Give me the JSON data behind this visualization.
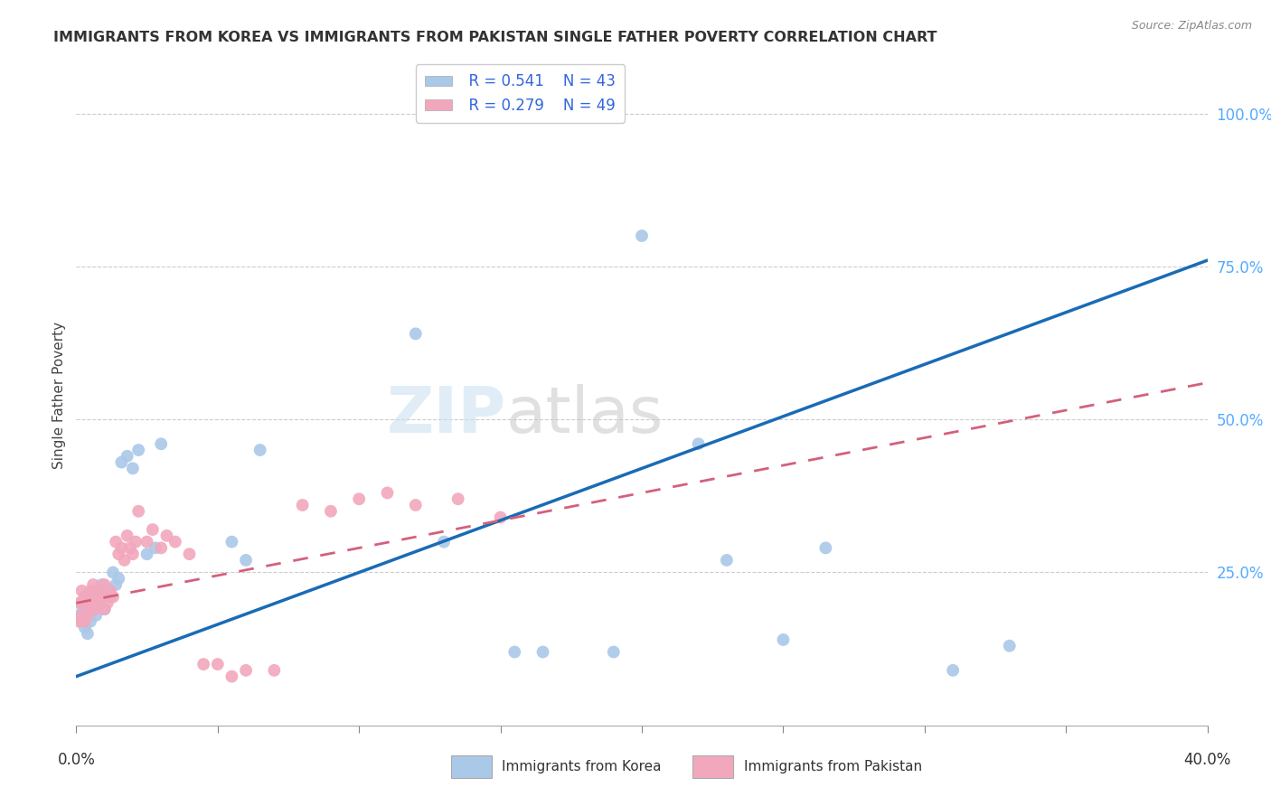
{
  "title": "IMMIGRANTS FROM KOREA VS IMMIGRANTS FROM PAKISTAN SINGLE FATHER POVERTY CORRELATION CHART",
  "source": "Source: ZipAtlas.com",
  "ylabel": "Single Father Poverty",
  "y_tick_labels": [
    "100.0%",
    "75.0%",
    "50.0%",
    "25.0%"
  ],
  "y_tick_positions": [
    1.0,
    0.75,
    0.5,
    0.25
  ],
  "xlim": [
    0.0,
    0.4
  ],
  "ylim": [
    0.0,
    1.08
  ],
  "korea_R": "0.541",
  "korea_N": "43",
  "pakistan_R": "0.279",
  "pakistan_N": "49",
  "korea_color": "#aac8e8",
  "pakistan_color": "#f2a8bc",
  "korea_line_color": "#1a6bb5",
  "pakistan_line_color": "#d4607a",
  "legend_label_korea": "Immigrants from Korea",
  "legend_label_pakistan": "Immigrants from Pakistan",
  "watermark_part1": "ZIP",
  "watermark_part2": "atlas",
  "korea_line_x0": 0.0,
  "korea_line_y0": 0.08,
  "korea_line_x1": 0.4,
  "korea_line_y1": 0.76,
  "pakistan_line_x0": 0.0,
  "pakistan_line_y0": 0.2,
  "pakistan_line_x1": 0.4,
  "pakistan_line_y1": 0.56,
  "korea_x": [
    0.001,
    0.002,
    0.002,
    0.003,
    0.003,
    0.004,
    0.004,
    0.005,
    0.005,
    0.006,
    0.006,
    0.007,
    0.007,
    0.008,
    0.009,
    0.01,
    0.011,
    0.012,
    0.013,
    0.014,
    0.015,
    0.016,
    0.018,
    0.02,
    0.022,
    0.025,
    0.028,
    0.03,
    0.055,
    0.06,
    0.065,
    0.12,
    0.13,
    0.155,
    0.165,
    0.19,
    0.2,
    0.22,
    0.23,
    0.25,
    0.265,
    0.31,
    0.33
  ],
  "korea_y": [
    0.18,
    0.17,
    0.2,
    0.16,
    0.19,
    0.15,
    0.21,
    0.17,
    0.2,
    0.19,
    0.22,
    0.18,
    0.21,
    0.2,
    0.23,
    0.19,
    0.22,
    0.21,
    0.25,
    0.23,
    0.24,
    0.43,
    0.44,
    0.42,
    0.45,
    0.28,
    0.29,
    0.46,
    0.3,
    0.27,
    0.45,
    0.64,
    0.3,
    0.12,
    0.12,
    0.12,
    0.8,
    0.46,
    0.27,
    0.14,
    0.29,
    0.09,
    0.13
  ],
  "pakistan_x": [
    0.001,
    0.001,
    0.002,
    0.002,
    0.003,
    0.003,
    0.004,
    0.004,
    0.005,
    0.005,
    0.006,
    0.006,
    0.007,
    0.007,
    0.008,
    0.008,
    0.009,
    0.01,
    0.01,
    0.011,
    0.012,
    0.013,
    0.014,
    0.015,
    0.016,
    0.017,
    0.018,
    0.019,
    0.02,
    0.021,
    0.022,
    0.025,
    0.027,
    0.03,
    0.032,
    0.035,
    0.04,
    0.045,
    0.05,
    0.055,
    0.06,
    0.07,
    0.08,
    0.09,
    0.1,
    0.11,
    0.12,
    0.135,
    0.15
  ],
  "pakistan_y": [
    0.17,
    0.2,
    0.18,
    0.22,
    0.17,
    0.21,
    0.18,
    0.2,
    0.19,
    0.22,
    0.2,
    0.23,
    0.19,
    0.21,
    0.2,
    0.22,
    0.21,
    0.19,
    0.23,
    0.2,
    0.22,
    0.21,
    0.3,
    0.28,
    0.29,
    0.27,
    0.31,
    0.29,
    0.28,
    0.3,
    0.35,
    0.3,
    0.32,
    0.29,
    0.31,
    0.3,
    0.28,
    0.1,
    0.1,
    0.08,
    0.09,
    0.09,
    0.36,
    0.35,
    0.37,
    0.38,
    0.36,
    0.37,
    0.34
  ]
}
